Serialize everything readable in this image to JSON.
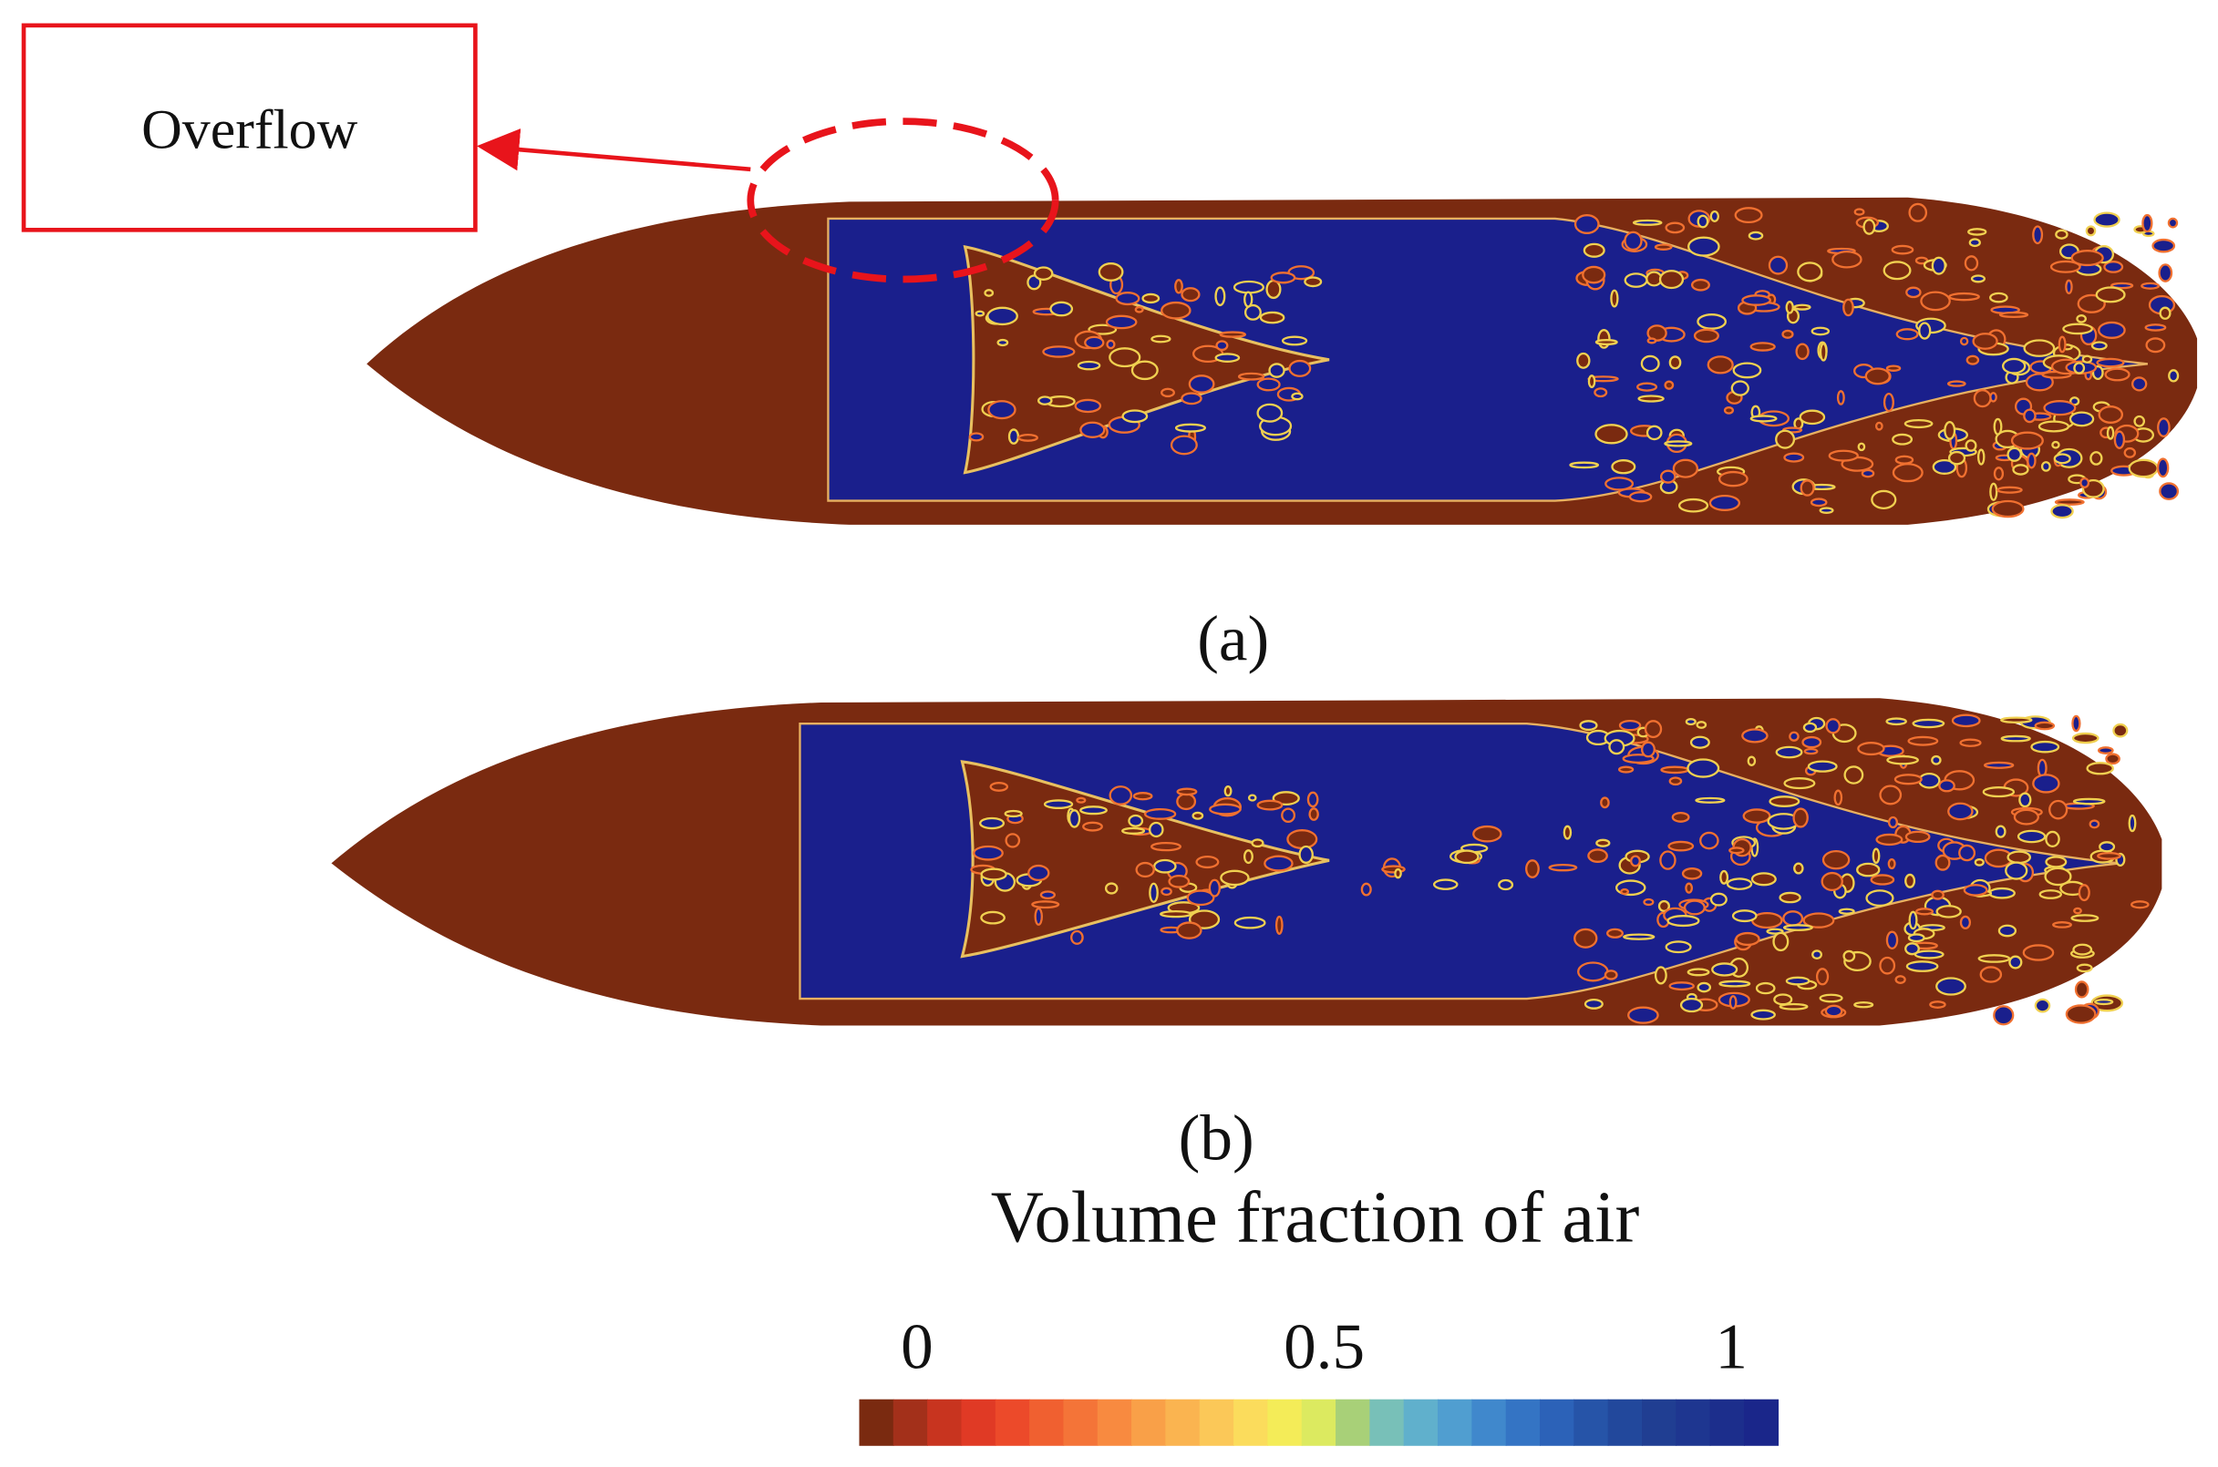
{
  "annotation": {
    "label": "Overflow"
  },
  "panels": [
    {
      "label": "(a)"
    },
    {
      "label": "(b)"
    }
  ],
  "colorbar": {
    "title": "Volume fraction of air",
    "ticks": [
      0,
      0.5,
      1
    ]
  }
}
